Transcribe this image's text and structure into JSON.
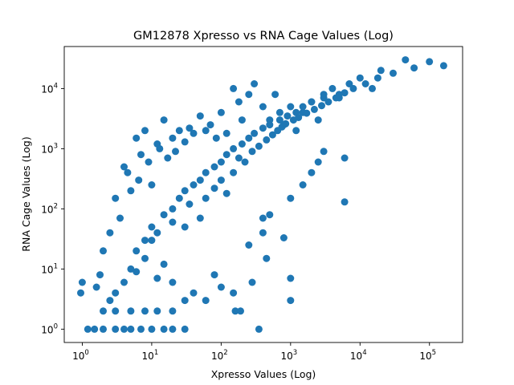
{
  "chart_data": {
    "type": "scatter",
    "title": "GM12878 Xpresso vs RNA Cage Values (Log)",
    "xlabel": "Xpresso Values (Log)",
    "ylabel": "RNA Cage Values (Log)",
    "xscale": "log",
    "yscale": "log",
    "xlim": [
      0.55,
      300000
    ],
    "ylim": [
      0.6,
      50000
    ],
    "x_ticks": [
      {
        "base": "10",
        "exp": "0",
        "value": 1
      },
      {
        "base": "10",
        "exp": "1",
        "value": 10
      },
      {
        "base": "10",
        "exp": "2",
        "value": 100
      },
      {
        "base": "10",
        "exp": "3",
        "value": 1000
      },
      {
        "base": "10",
        "exp": "4",
        "value": 10000
      },
      {
        "base": "10",
        "exp": "5",
        "value": 100000
      }
    ],
    "y_ticks": [
      {
        "base": "10",
        "exp": "0",
        "value": 1
      },
      {
        "base": "10",
        "exp": "1",
        "value": 10
      },
      {
        "base": "10",
        "exp": "2",
        "value": 100
      },
      {
        "base": "10",
        "exp": "3",
        "value": 1000
      },
      {
        "base": "10",
        "exp": "4",
        "value": 10000
      }
    ],
    "grid": false,
    "legend": "none",
    "marker_color": "#1f77b4",
    "series": [
      {
        "values_description": "dense cloud following y≈x trend, representative sample",
        "points": [
          [
            1,
            6
          ],
          [
            0.95,
            4
          ],
          [
            1.2,
            1
          ],
          [
            1.5,
            1
          ],
          [
            2,
            1
          ],
          [
            3,
            1
          ],
          [
            4,
            1
          ],
          [
            5,
            1
          ],
          [
            7,
            1
          ],
          [
            10,
            1
          ],
          [
            15,
            1
          ],
          [
            20,
            1
          ],
          [
            30,
            1
          ],
          [
            350,
            1
          ],
          [
            2,
            2
          ],
          [
            3,
            2
          ],
          [
            5,
            2
          ],
          [
            8,
            2
          ],
          [
            12,
            2
          ],
          [
            20,
            2
          ],
          [
            160,
            2
          ],
          [
            190,
            2
          ],
          [
            1.6,
            5
          ],
          [
            1.8,
            8
          ],
          [
            2,
            20
          ],
          [
            2.5,
            3
          ],
          [
            3,
            4
          ],
          [
            4,
            6
          ],
          [
            2.5,
            40
          ],
          [
            3,
            150
          ],
          [
            3.5,
            70
          ],
          [
            4,
            500
          ],
          [
            4.5,
            400
          ],
          [
            5,
            200
          ],
          [
            6,
            1500
          ],
          [
            6.5,
            300
          ],
          [
            7,
            800
          ],
          [
            8,
            2000
          ],
          [
            9,
            600
          ],
          [
            10,
            250
          ],
          [
            12,
            1200
          ],
          [
            13,
            1000
          ],
          [
            15,
            3000
          ],
          [
            17,
            700
          ],
          [
            20,
            1500
          ],
          [
            22,
            900
          ],
          [
            25,
            2000
          ],
          [
            30,
            1300
          ],
          [
            35,
            2200
          ],
          [
            40,
            1800
          ],
          [
            50,
            3500
          ],
          [
            60,
            2000
          ],
          [
            70,
            2500
          ],
          [
            85,
            1500
          ],
          [
            100,
            4000
          ],
          [
            120,
            1800
          ],
          [
            150,
            10000
          ],
          [
            180,
            6000
          ],
          [
            200,
            3000
          ],
          [
            250,
            8000
          ],
          [
            300,
            12000
          ],
          [
            400,
            5000
          ],
          [
            500,
            3000
          ],
          [
            600,
            8000
          ],
          [
            700,
            4000
          ],
          [
            800,
            2500
          ],
          [
            1000,
            5000
          ],
          [
            1200,
            2000
          ],
          [
            1500,
            4000
          ],
          [
            2000,
            6000
          ],
          [
            2500,
            3000
          ],
          [
            3000,
            8000
          ],
          [
            4000,
            10000
          ],
          [
            5000,
            7000
          ],
          [
            7000,
            12000
          ],
          [
            10000,
            15000
          ],
          [
            15000,
            10000
          ],
          [
            20000,
            20000
          ],
          [
            30000,
            18000
          ],
          [
            45000,
            30000
          ],
          [
            60000,
            22000
          ],
          [
            100000,
            28000
          ],
          [
            160000,
            24000
          ],
          [
            5,
            10
          ],
          [
            6,
            20
          ],
          [
            8,
            30
          ],
          [
            10,
            50
          ],
          [
            12,
            40
          ],
          [
            15,
            80
          ],
          [
            20,
            100
          ],
          [
            25,
            150
          ],
          [
            30,
            200
          ],
          [
            40,
            250
          ],
          [
            50,
            300
          ],
          [
            60,
            400
          ],
          [
            80,
            500
          ],
          [
            100,
            600
          ],
          [
            120,
            800
          ],
          [
            150,
            1000
          ],
          [
            200,
            1200
          ],
          [
            250,
            1500
          ],
          [
            300,
            1800
          ],
          [
            400,
            2200
          ],
          [
            500,
            2500
          ],
          [
            700,
            3000
          ],
          [
            900,
            3500
          ],
          [
            1200,
            4000
          ],
          [
            1500,
            5000
          ],
          [
            2000,
            6000
          ],
          [
            3000,
            7000
          ],
          [
            5000,
            8000
          ],
          [
            6000,
            130
          ],
          [
            6000,
            700
          ],
          [
            1000,
            3
          ],
          [
            1000,
            7
          ],
          [
            280,
            6
          ],
          [
            250,
            25
          ],
          [
            450,
            15
          ],
          [
            400,
            40
          ],
          [
            400,
            70
          ],
          [
            500,
            80
          ],
          [
            800,
            33
          ],
          [
            1000,
            150
          ],
          [
            1500,
            250
          ],
          [
            2000,
            400
          ],
          [
            2500,
            600
          ],
          [
            3000,
            900
          ],
          [
            80,
            8
          ],
          [
            100,
            5
          ],
          [
            150,
            4
          ],
          [
            60,
            3
          ],
          [
            40,
            4
          ],
          [
            30,
            3
          ],
          [
            20,
            6
          ],
          [
            15,
            12
          ],
          [
            12,
            7
          ],
          [
            8,
            15
          ],
          [
            6,
            9
          ],
          [
            10,
            30
          ],
          [
            20,
            60
          ],
          [
            30,
            50
          ],
          [
            35,
            120
          ],
          [
            50,
            70
          ],
          [
            60,
            150
          ],
          [
            80,
            220
          ],
          [
            100,
            300
          ],
          [
            120,
            180
          ],
          [
            150,
            400
          ],
          [
            180,
            700
          ],
          [
            220,
            600
          ],
          [
            280,
            900
          ],
          [
            350,
            1100
          ],
          [
            450,
            1400
          ],
          [
            550,
            1700
          ],
          [
            650,
            2000
          ],
          [
            750,
            2300
          ],
          [
            850,
            2600
          ],
          [
            1100,
            3000
          ],
          [
            1300,
            3300
          ],
          [
            1700,
            3900
          ],
          [
            2200,
            4500
          ],
          [
            2800,
            5200
          ],
          [
            3500,
            6000
          ],
          [
            4500,
            7000
          ],
          [
            6000,
            8500
          ],
          [
            8000,
            10000
          ],
          [
            12000,
            12000
          ],
          [
            18000,
            15000
          ]
        ]
      }
    ]
  }
}
